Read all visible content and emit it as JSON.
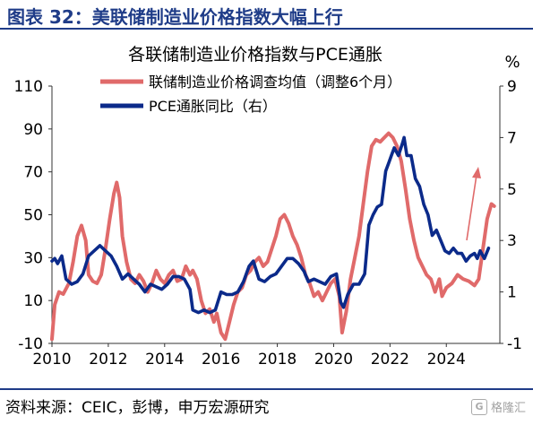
{
  "figure": {
    "label": "图表 32：美联储制造业价格指数大幅上行",
    "source": "资料来源：CEIC，彭博，申万宏源研究",
    "watermark": "格隆汇"
  },
  "colors": {
    "header_blue": "#1f3c88",
    "survey_red": "#e06a6a",
    "pce_navy": "#0b2a8a",
    "arrow_red": "#e06a6a"
  },
  "chart_data": {
    "type": "line",
    "title": "各联储制造业价格指数与PCE通胀",
    "right_unit": "%",
    "x_ticks": [
      "2010",
      "2012",
      "2014",
      "2016",
      "2018",
      "2020",
      "2022",
      "2024"
    ],
    "x_range": [
      2010.0,
      2025.9
    ],
    "y_left": {
      "ticks": [
        "-10",
        "10",
        "30",
        "50",
        "70",
        "90",
        "110"
      ],
      "range": [
        -10,
        110
      ]
    },
    "y_right": {
      "ticks": [
        "-1",
        "1",
        "3",
        "5",
        "7",
        "9"
      ],
      "range": [
        -1,
        9
      ]
    },
    "legend": {
      "position": "top-center"
    },
    "annotation": "upward red arrow near 2025",
    "series": [
      {
        "name": "联储制造业价格调查均值（调整6个月）",
        "axis": "left",
        "color": "#e06a6a",
        "points": [
          [
            2010.0,
            -8
          ],
          [
            2010.1,
            8
          ],
          [
            2010.25,
            14
          ],
          [
            2010.4,
            13
          ],
          [
            2010.6,
            18
          ],
          [
            2010.75,
            28
          ],
          [
            2010.9,
            40
          ],
          [
            2011.05,
            45
          ],
          [
            2011.2,
            38
          ],
          [
            2011.3,
            22
          ],
          [
            2011.45,
            19
          ],
          [
            2011.6,
            18
          ],
          [
            2011.75,
            22
          ],
          [
            2011.9,
            34
          ],
          [
            2012.05,
            48
          ],
          [
            2012.2,
            60
          ],
          [
            2012.3,
            65
          ],
          [
            2012.4,
            58
          ],
          [
            2012.5,
            40
          ],
          [
            2012.65,
            28
          ],
          [
            2012.8,
            20
          ],
          [
            2012.95,
            18
          ],
          [
            2013.1,
            22
          ],
          [
            2013.25,
            19
          ],
          [
            2013.4,
            14
          ],
          [
            2013.55,
            18
          ],
          [
            2013.7,
            24
          ],
          [
            2013.85,
            20
          ],
          [
            2014.0,
            18
          ],
          [
            2014.15,
            22
          ],
          [
            2014.3,
            24
          ],
          [
            2014.45,
            19
          ],
          [
            2014.6,
            20
          ],
          [
            2014.75,
            26
          ],
          [
            2014.9,
            22
          ],
          [
            2015.0,
            24
          ],
          [
            2015.15,
            20
          ],
          [
            2015.3,
            10
          ],
          [
            2015.45,
            4
          ],
          [
            2015.6,
            6
          ],
          [
            2015.75,
            0
          ],
          [
            2015.85,
            4
          ],
          [
            2016.0,
            -5
          ],
          [
            2016.15,
            -8
          ],
          [
            2016.3,
            0
          ],
          [
            2016.45,
            8
          ],
          [
            2016.6,
            14
          ],
          [
            2016.75,
            16
          ],
          [
            2016.9,
            22
          ],
          [
            2017.05,
            24
          ],
          [
            2017.2,
            28
          ],
          [
            2017.35,
            30
          ],
          [
            2017.5,
            26
          ],
          [
            2017.65,
            28
          ],
          [
            2017.8,
            34
          ],
          [
            2017.95,
            40
          ],
          [
            2018.1,
            48
          ],
          [
            2018.25,
            50
          ],
          [
            2018.4,
            46
          ],
          [
            2018.55,
            40
          ],
          [
            2018.7,
            36
          ],
          [
            2018.85,
            30
          ],
          [
            2019.0,
            22
          ],
          [
            2019.15,
            18
          ],
          [
            2019.3,
            12
          ],
          [
            2019.45,
            14
          ],
          [
            2019.6,
            10
          ],
          [
            2019.75,
            14
          ],
          [
            2019.9,
            18
          ],
          [
            2020.05,
            20
          ],
          [
            2020.2,
            12
          ],
          [
            2020.3,
            -5
          ],
          [
            2020.45,
            5
          ],
          [
            2020.6,
            20
          ],
          [
            2020.75,
            30
          ],
          [
            2020.9,
            40
          ],
          [
            2021.05,
            55
          ],
          [
            2021.2,
            70
          ],
          [
            2021.35,
            82
          ],
          [
            2021.5,
            85
          ],
          [
            2021.65,
            84
          ],
          [
            2021.8,
            86
          ],
          [
            2021.95,
            88
          ],
          [
            2022.1,
            86
          ],
          [
            2022.25,
            82
          ],
          [
            2022.4,
            75
          ],
          [
            2022.55,
            62
          ],
          [
            2022.7,
            48
          ],
          [
            2022.85,
            38
          ],
          [
            2023.0,
            30
          ],
          [
            2023.15,
            26
          ],
          [
            2023.3,
            22
          ],
          [
            2023.45,
            20
          ],
          [
            2023.6,
            14
          ],
          [
            2023.75,
            20
          ],
          [
            2023.85,
            12
          ],
          [
            2024.0,
            16
          ],
          [
            2024.2,
            18
          ],
          [
            2024.4,
            22
          ],
          [
            2024.6,
            20
          ],
          [
            2024.8,
            19
          ],
          [
            2025.0,
            17
          ],
          [
            2025.15,
            20
          ],
          [
            2025.3,
            34
          ],
          [
            2025.45,
            48
          ],
          [
            2025.6,
            55
          ],
          [
            2025.7,
            54
          ]
        ]
      },
      {
        "name": "PCE通胀同比（右）",
        "axis": "right",
        "color": "#0b2a8a",
        "points": [
          [
            2010.0,
            2.2
          ],
          [
            2010.1,
            2.3
          ],
          [
            2010.2,
            2.1
          ],
          [
            2010.35,
            2.4
          ],
          [
            2010.5,
            1.5
          ],
          [
            2010.7,
            1.3
          ],
          [
            2010.9,
            1.4
          ],
          [
            2011.1,
            1.7
          ],
          [
            2011.3,
            2.4
          ],
          [
            2011.5,
            2.6
          ],
          [
            2011.7,
            2.8
          ],
          [
            2011.9,
            2.6
          ],
          [
            2012.1,
            2.4
          ],
          [
            2012.3,
            2.0
          ],
          [
            2012.5,
            1.5
          ],
          [
            2012.7,
            1.7
          ],
          [
            2012.9,
            1.5
          ],
          [
            2013.1,
            1.3
          ],
          [
            2013.3,
            1.0
          ],
          [
            2013.5,
            1.3
          ],
          [
            2013.7,
            1.2
          ],
          [
            2013.9,
            1.1
          ],
          [
            2014.1,
            1.3
          ],
          [
            2014.3,
            1.6
          ],
          [
            2014.5,
            1.6
          ],
          [
            2014.7,
            1.5
          ],
          [
            2014.9,
            1.1
          ],
          [
            2015.0,
            0.3
          ],
          [
            2015.2,
            0.2
          ],
          [
            2015.4,
            0.3
          ],
          [
            2015.6,
            0.2
          ],
          [
            2015.8,
            0.3
          ],
          [
            2016.0,
            1.0
          ],
          [
            2016.2,
            0.9
          ],
          [
            2016.4,
            0.9
          ],
          [
            2016.6,
            1.0
          ],
          [
            2016.8,
            1.4
          ],
          [
            2017.0,
            2.0
          ],
          [
            2017.15,
            2.2
          ],
          [
            2017.35,
            1.5
          ],
          [
            2017.55,
            1.4
          ],
          [
            2017.75,
            1.6
          ],
          [
            2017.95,
            1.7
          ],
          [
            2018.15,
            2.0
          ],
          [
            2018.35,
            2.3
          ],
          [
            2018.55,
            2.3
          ],
          [
            2018.75,
            2.1
          ],
          [
            2018.95,
            1.8
          ],
          [
            2019.1,
            1.4
          ],
          [
            2019.3,
            1.5
          ],
          [
            2019.5,
            1.4
          ],
          [
            2019.7,
            1.3
          ],
          [
            2019.9,
            1.6
          ],
          [
            2020.1,
            1.7
          ],
          [
            2020.25,
            0.6
          ],
          [
            2020.35,
            0.4
          ],
          [
            2020.5,
            0.9
          ],
          [
            2020.7,
            1.3
          ],
          [
            2020.9,
            1.3
          ],
          [
            2021.1,
            1.7
          ],
          [
            2021.25,
            3.6
          ],
          [
            2021.4,
            4.0
          ],
          [
            2021.55,
            4.3
          ],
          [
            2021.7,
            4.4
          ],
          [
            2021.85,
            5.7
          ],
          [
            2021.95,
            6.0
          ],
          [
            2022.05,
            6.3
          ],
          [
            2022.15,
            6.6
          ],
          [
            2022.3,
            6.3
          ],
          [
            2022.45,
            6.8
          ],
          [
            2022.5,
            7.0
          ],
          [
            2022.6,
            6.3
          ],
          [
            2022.75,
            6.3
          ],
          [
            2022.9,
            5.4
          ],
          [
            2023.05,
            5.1
          ],
          [
            2023.2,
            4.4
          ],
          [
            2023.35,
            4.0
          ],
          [
            2023.5,
            3.2
          ],
          [
            2023.65,
            3.4
          ],
          [
            2023.8,
            3.0
          ],
          [
            2023.95,
            2.6
          ],
          [
            2024.1,
            2.5
          ],
          [
            2024.25,
            2.7
          ],
          [
            2024.4,
            2.5
          ],
          [
            2024.55,
            2.5
          ],
          [
            2024.7,
            2.2
          ],
          [
            2024.85,
            2.4
          ],
          [
            2025.0,
            2.5
          ],
          [
            2025.1,
            2.3
          ],
          [
            2025.2,
            2.6
          ],
          [
            2025.35,
            2.3
          ],
          [
            2025.5,
            2.7
          ]
        ]
      }
    ]
  }
}
